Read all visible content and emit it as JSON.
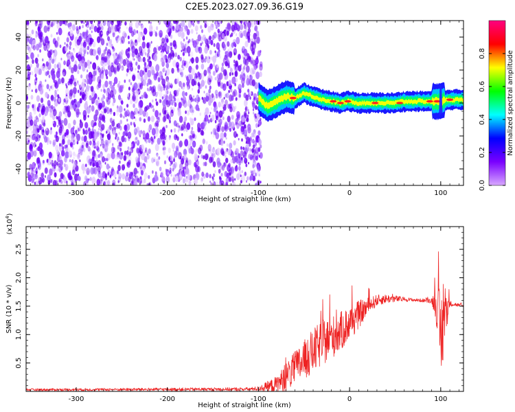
{
  "title": "C2E5.2023.027.09.36.G19",
  "chart_data": [
    {
      "type": "heatmap",
      "xlabel": "Height of straight line (km)",
      "ylabel": "Frequency (Hz)",
      "xlim": [
        -355,
        125
      ],
      "ylim": [
        -50,
        50
      ],
      "x_ticks": [
        -300,
        -200,
        -100,
        0,
        100
      ],
      "y_ticks": [
        -40,
        -20,
        0,
        20,
        40
      ],
      "colorbar": {
        "label": "Normalized spectral amplitude",
        "range": [
          0,
          1
        ],
        "ticks": [
          "0.0",
          "0.2",
          "0.4",
          "0.6",
          "0.8"
        ],
        "colors": [
          "#d8a8ff",
          "#7a00ff",
          "#0000ff",
          "#00ffff",
          "#00ff00",
          "#ffff00",
          "#ff0000",
          "#ff0080"
        ]
      },
      "noise_region": [
        -355,
        -100
      ],
      "signal_track": {
        "x": [
          -100,
          -90,
          -80,
          -70,
          -60,
          -50,
          -40,
          -30,
          -20,
          -10,
          0,
          10,
          20,
          30,
          40,
          50,
          60,
          70,
          80,
          90,
          100,
          110,
          125
        ],
        "freq": [
          3,
          -2,
          1,
          4,
          3,
          6,
          4,
          2,
          1,
          0,
          1,
          0,
          0,
          0,
          0,
          0,
          1,
          1,
          1,
          1,
          1,
          2,
          2
        ]
      }
    },
    {
      "type": "line",
      "xlabel": "Height of straight line (km)",
      "ylabel": "SNR (10 * v/v)",
      "y_multiplier": "(x10",
      "y_multiplier_exp": "4",
      "xlim": [
        -355,
        125
      ],
      "ylim": [
        0,
        29000
      ],
      "x_ticks": [
        -300,
        -200,
        -100,
        0,
        100
      ],
      "y_ticks": [
        "0.5",
        "1.0",
        "1.5",
        "2.0",
        "2.5"
      ],
      "series": [
        {
          "color": "#ee2222",
          "envelope": {
            "x": [
              -355,
              -110,
              -100,
              -80,
              -70,
              -60,
              -50,
              -40,
              -30,
              -20,
              -10,
              0,
              10,
              20,
              30,
              40,
              50,
              60,
              70,
              80,
              90,
              95,
              100,
              105,
              110,
              125
            ],
            "mean": [
              300,
              400,
              500,
              1200,
              2500,
              4000,
              5500,
              7000,
              8500,
              9500,
              10500,
              12000,
              13500,
              15000,
              16000,
              16300,
              16300,
              16200,
              16100,
              16000,
              16000,
              15500,
              9000,
              14000,
              15500,
              15000
            ],
            "spread": [
              200,
              300,
              400,
              1500,
              2500,
              3000,
              3500,
              4000,
              4000,
              3800,
              3500,
              3200,
              2500,
              1500,
              1000,
              800,
              600,
              400,
              300,
              300,
              500,
              3000,
              9000,
              5000,
              500,
              200
            ]
          }
        }
      ]
    }
  ]
}
